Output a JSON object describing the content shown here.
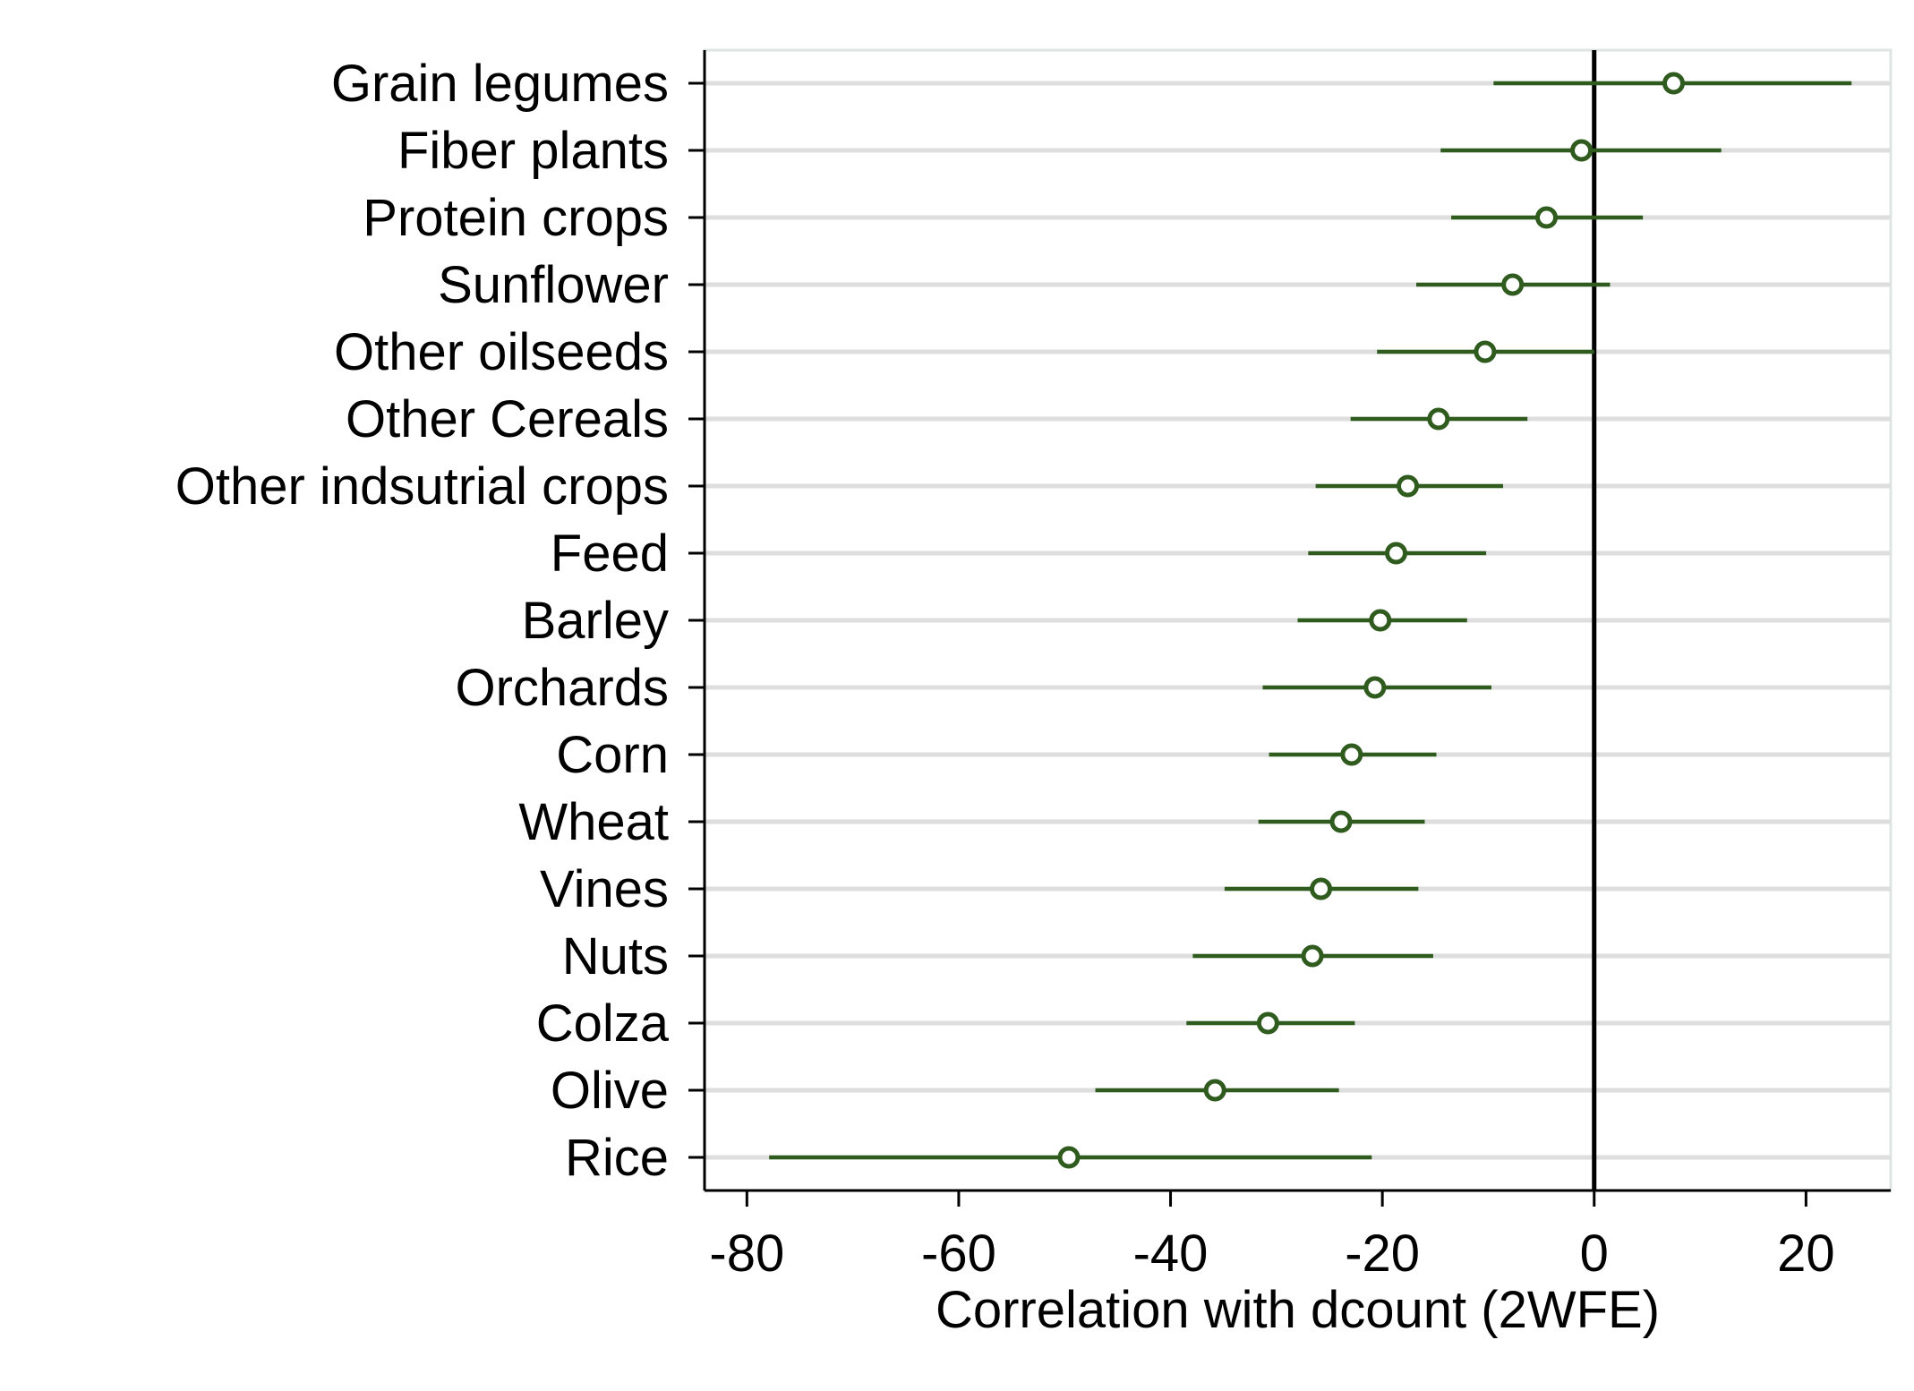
{
  "chart_data": {
    "type": "scatter",
    "subtype": "coefficient-plot",
    "orientation": "horizontal",
    "title": "",
    "xlabel": "Correlation with dcount (2WFE)",
    "ylabel": "",
    "xlim": [
      -84,
      28
    ],
    "xticks": [
      -80,
      -60,
      -40,
      -20,
      0,
      20
    ],
    "reference_line_x": 0,
    "grid": "horizontal",
    "legend": "none",
    "colors": {
      "series": "#2f5c1e",
      "grid": "#dedede",
      "axis": "#000000",
      "frame": "#dde5e5"
    },
    "categories": [
      "Grain legumes",
      "Fiber plants",
      "Protein crops",
      "Sunflower",
      "Other oilseeds",
      "Other Cereals",
      "Other indsutrial crops",
      "Feed",
      "Barley",
      "Orchards",
      "Corn",
      "Wheat",
      "Vines",
      "Nuts",
      "Colza",
      "Olive",
      "Rice"
    ],
    "estimates": [
      7.5,
      -1.2,
      -4.5,
      -7.7,
      -10.3,
      -14.7,
      -17.6,
      -18.7,
      -20.2,
      -20.7,
      -22.9,
      -23.9,
      -25.8,
      -26.6,
      -30.8,
      -35.8,
      -49.6
    ],
    "ci_low": [
      -9.5,
      -14.5,
      -13.5,
      -16.8,
      -20.5,
      -23.0,
      -26.3,
      -27.0,
      -28.0,
      -31.3,
      -30.7,
      -31.7,
      -34.9,
      -37.9,
      -38.5,
      -47.1,
      -77.9
    ],
    "ci_high": [
      24.3,
      12.0,
      4.6,
      1.5,
      0.0,
      -6.3,
      -8.6,
      -10.2,
      -12.0,
      -9.7,
      -14.9,
      -16.0,
      -16.6,
      -15.2,
      -22.6,
      -24.1,
      -21.0
    ]
  }
}
